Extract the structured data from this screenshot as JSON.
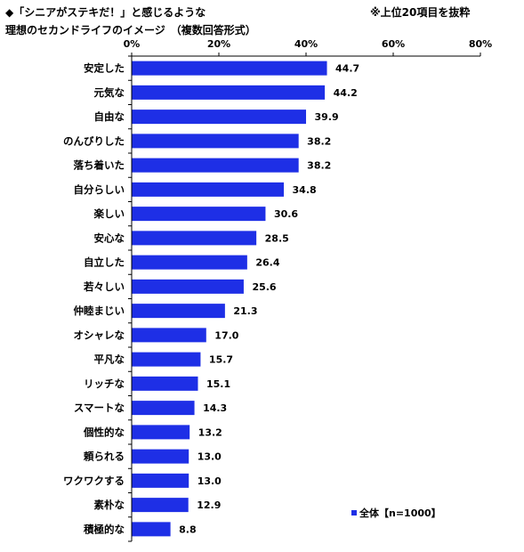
{
  "header": {
    "title_line1": "◆「シニアがステキだ！」と感じるような",
    "title_line2": "理想のセカンドライフのイメージ　（複数回答形式）",
    "note": "※上位20項目を抜粋"
  },
  "chart_data": {
    "type": "bar",
    "orientation": "horizontal",
    "categories": [
      "安定した",
      "元気な",
      "自由な",
      "のんびりした",
      "落ち着いた",
      "自分らしい",
      "楽しい",
      "安心な",
      "自立した",
      "若々しい",
      "仲睦まじい",
      "オシャレな",
      "平凡な",
      "リッチな",
      "スマートな",
      "個性的な",
      "頼られる",
      "ワクワクする",
      "素朴な",
      "積極的な"
    ],
    "series": [
      {
        "name": "全体【n=1000】",
        "values": [
          44.7,
          44.2,
          39.9,
          38.2,
          38.2,
          34.8,
          30.6,
          28.5,
          26.4,
          25.6,
          21.3,
          17.0,
          15.7,
          15.1,
          14.3,
          13.2,
          13.0,
          13.0,
          12.9,
          8.8
        ],
        "value_labels": [
          "44.7",
          "44.2",
          "39.9",
          "38.2",
          "38.2",
          "34.8",
          "30.6",
          "28.5",
          "26.4",
          "25.6",
          "21.3",
          "17.0",
          "15.7",
          "15.1",
          "14.3",
          "13.2",
          "13.0",
          "13.0",
          "12.9",
          "8.8"
        ]
      }
    ],
    "xlim": [
      0,
      80
    ],
    "ticks": [
      "0%",
      "20%",
      "40%",
      "60%",
      "80%"
    ],
    "tick_values": [
      0,
      20,
      40,
      60,
      80
    ],
    "grid": false,
    "legend_position": "bottom-right",
    "bar_color": "#1e2fe6"
  }
}
